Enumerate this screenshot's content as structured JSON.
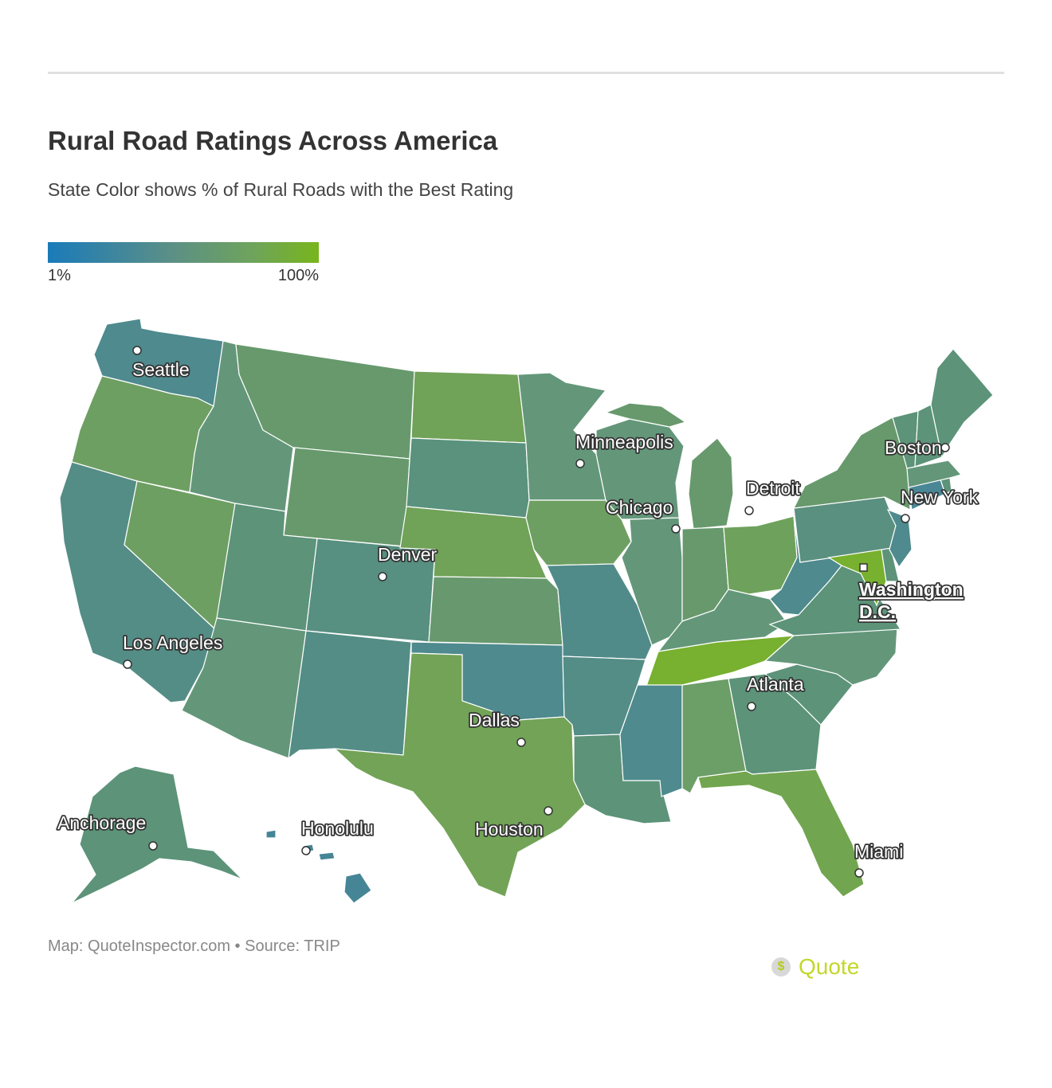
{
  "title": "Rural Road Ratings Across America",
  "subtitle": "State Color shows % of Rural Roads with the Best Rating",
  "legend": {
    "min_label": "1%",
    "max_label": "100%",
    "color_low": "#1a7bb9",
    "color_high": "#78b51c"
  },
  "cities": [
    {
      "name": "Seattle"
    },
    {
      "name": "Minneapolis"
    },
    {
      "name": "Boston"
    },
    {
      "name": "Detroit"
    },
    {
      "name": "Chicago"
    },
    {
      "name": "New York"
    },
    {
      "name": "Denver"
    },
    {
      "name": "Washington D.C.",
      "line1": "Washington",
      "line2": "D.C."
    },
    {
      "name": "Los Angeles"
    },
    {
      "name": "Atlanta"
    },
    {
      "name": "Dallas"
    },
    {
      "name": "Anchorage"
    },
    {
      "name": "Honolulu"
    },
    {
      "name": "Houston"
    },
    {
      "name": "Miami"
    }
  ],
  "state_colors": {
    "WA": "#4e8a8e",
    "OR": "#6e9f62",
    "CA": "#548d86",
    "NV": "#6d9f62",
    "ID": "#64977a",
    "MT": "#67996c",
    "WY": "#67996c",
    "UT": "#5c9379",
    "AZ": "#64977a",
    "CO": "#578f80",
    "NM": "#548d86",
    "ND": "#70a258",
    "SD": "#5a927e",
    "NE": "#70a258",
    "KS": "#68996e",
    "OK": "#4e8a8e",
    "TX": "#72a357",
    "MN": "#64977a",
    "IA": "#6e9f62",
    "MO": "#508b89",
    "AR": "#548d86",
    "LA": "#5c9379",
    "WI": "#64977a",
    "IL": "#64977a",
    "MS": "#4e8a8e",
    "MI": "#67996c",
    "IN": "#67996c",
    "KY": "#64977a",
    "TN": "#78b02f",
    "AL": "#6c9e68",
    "OH": "#6ea25c",
    "GA": "#5c9379",
    "FL": "#72a54f",
    "SC": "#5c9379",
    "NC": "#64977a",
    "VA": "#5c9379",
    "WV": "#4e8a8e",
    "PA": "#5a907f",
    "NY": "#67996c",
    "MD": "#78b02f",
    "DE": "#5c9379",
    "NJ": "#4e8a8e",
    "CT": "#4a8796",
    "RI": "#5c9379",
    "MA": "#64977a",
    "VT": "#5c9379",
    "NH": "#5c9379",
    "ME": "#5c9379",
    "AK": "#5c9379",
    "HI": "#458596"
  },
  "source": "Map: QuoteInspector.com • Source: TRIP",
  "logo_text": "Quote",
  "logo_symbol": "$"
}
